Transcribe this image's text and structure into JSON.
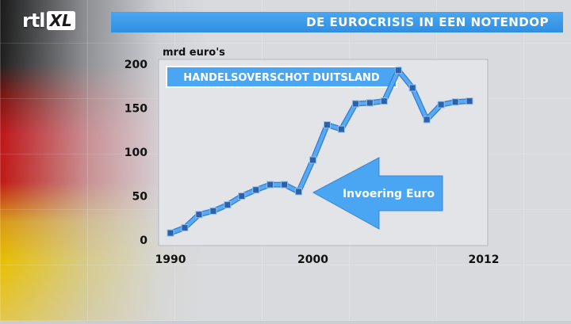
{
  "logo": {
    "rtl": "rtl",
    "xl": "XL"
  },
  "header": {
    "title": "DE EUROCRISIS IN EEN NOTENDOP"
  },
  "colors": {
    "accent": "#3d9cf0",
    "line": "#5aa8f0",
    "marker": "#2f5fa8"
  },
  "chart_data": {
    "type": "line",
    "title": "HANDELSOVERSCHOT DUITSLAND",
    "ylabel": "mrd euro's",
    "xlabel": "",
    "ylim": [
      0,
      200
    ],
    "xlim": [
      1990,
      2012
    ],
    "y_ticks": [
      "0",
      "50",
      "100",
      "150",
      "200"
    ],
    "x_ticks": [
      "1990",
      "2000",
      "2012"
    ],
    "grid": false,
    "series": [
      {
        "x": [
          1990,
          1991,
          1992,
          1993,
          1994,
          1995,
          1996,
          1997,
          1998,
          1999,
          2000,
          2001,
          2002,
          2003,
          2004,
          2005,
          2006,
          2007,
          2008,
          2009,
          2010,
          2011
        ],
        "values": [
          8,
          14,
          29,
          33,
          40,
          50,
          57,
          63,
          63,
          55,
          91,
          131,
          126,
          155,
          156,
          158,
          193,
          173,
          137,
          154,
          157,
          158
        ]
      }
    ],
    "annotation": {
      "text": "Invoering Euro",
      "x": 1999,
      "y": 55
    }
  }
}
